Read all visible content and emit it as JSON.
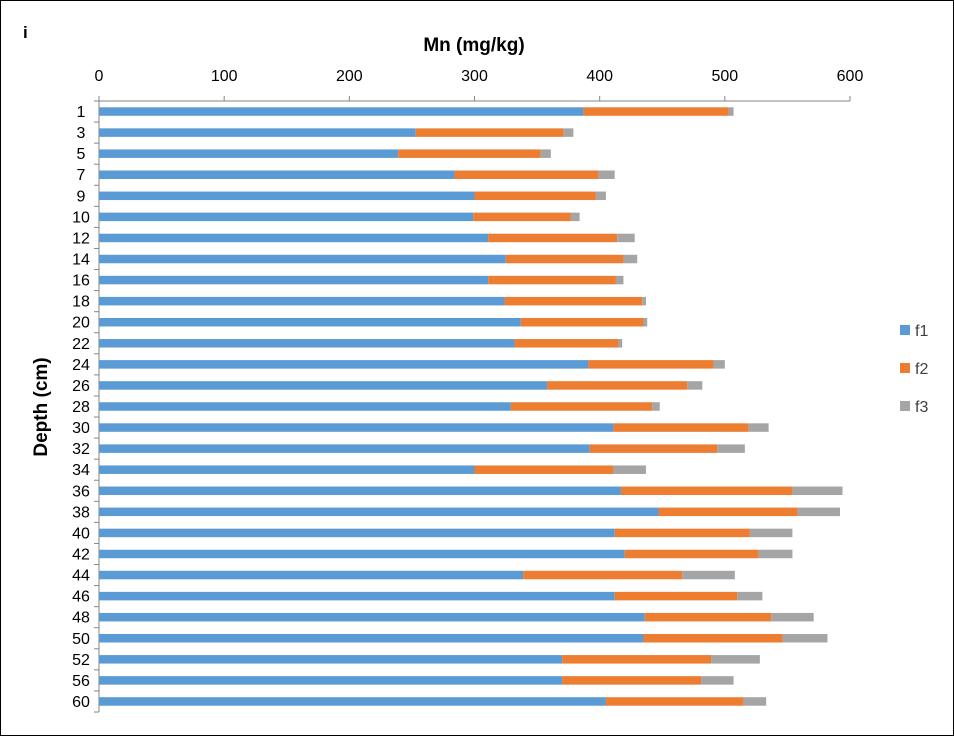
{
  "panel_label": "i",
  "colors": {
    "f1": "#5B9BD5",
    "f2": "#ED7D31",
    "f3": "#A5A5A5",
    "axis": "#868686",
    "frame": "#000000"
  },
  "chart_data": {
    "type": "bar",
    "orientation": "horizontal",
    "stacked": true,
    "title": "",
    "xlabel": "Mn (mg/kg)",
    "ylabel": "Depth (cm)",
    "xlim": [
      0,
      600
    ],
    "xticks": [
      0,
      100,
      200,
      300,
      400,
      500,
      600
    ],
    "x_axis_position": "top",
    "grid": false,
    "legend_position": "right",
    "categories": [
      "1",
      "3",
      "5",
      "7",
      "9",
      "10",
      "12",
      "14",
      "16",
      "18",
      "20",
      "22",
      "24",
      "26",
      "28",
      "30",
      "32",
      "34",
      "36",
      "38",
      "40",
      "42",
      "44",
      "46",
      "48",
      "50",
      "52",
      "56",
      "60"
    ],
    "series": [
      {
        "name": "f1",
        "color": "#5B9BD5",
        "values": [
          387,
          253,
          239,
          284,
          300,
          299,
          311,
          325,
          311,
          324,
          337,
          332,
          391,
          358,
          329,
          411,
          392,
          300,
          417,
          447,
          412,
          420,
          339,
          412,
          436,
          435,
          370,
          370,
          405
        ]
      },
      {
        "name": "f2",
        "color": "#ED7D31",
        "values": [
          116,
          118,
          114,
          115,
          97,
          78,
          103,
          94,
          102,
          110,
          98,
          83,
          100,
          112,
          113,
          108,
          102,
          111,
          137,
          111,
          108,
          107,
          127,
          98,
          101,
          111,
          119,
          111,
          110
        ]
      },
      {
        "name": "f3",
        "color": "#A5A5A5",
        "values": [
          4,
          8,
          8,
          13,
          8,
          7,
          14,
          11,
          6,
          3,
          3,
          3,
          9,
          12,
          6,
          16,
          22,
          26,
          40,
          34,
          34,
          27,
          42,
          20,
          34,
          36,
          39,
          26,
          18
        ]
      }
    ]
  }
}
